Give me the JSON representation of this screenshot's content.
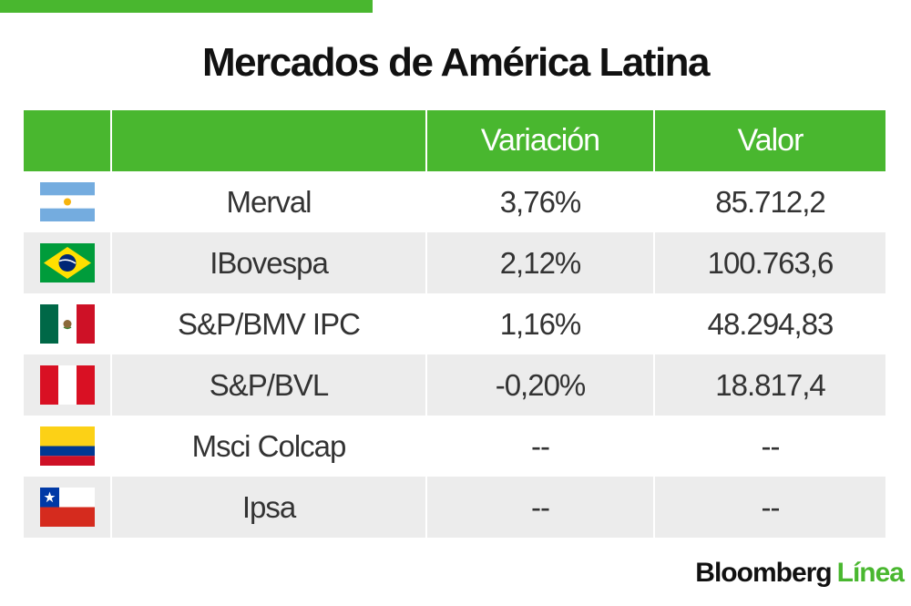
{
  "title": "Mercados de América Latina",
  "accent_color": "#49b72f",
  "table": {
    "headers": [
      "",
      "",
      "Variación",
      "Valor"
    ],
    "rows": [
      {
        "flag": "argentina-flag-icon",
        "name": "Merval",
        "variation": "3,76%",
        "value": "85.712,2"
      },
      {
        "flag": "brazil-flag-icon",
        "name": "IBovespa",
        "variation": "2,12%",
        "value": "100.763,6"
      },
      {
        "flag": "mexico-flag-icon",
        "name": "S&P/BMV IPC",
        "variation": "1,16%",
        "value": "48.294,83"
      },
      {
        "flag": "peru-flag-icon",
        "name": "S&P/BVL",
        "variation": "-0,20%",
        "value": "18.817,4"
      },
      {
        "flag": "colombia-flag-icon",
        "name": "Msci Colcap",
        "variation": "--",
        "value": "--"
      },
      {
        "flag": "chile-flag-icon",
        "name": "Ipsa",
        "variation": "--",
        "value": "--"
      }
    ]
  },
  "footer": {
    "brand": "Bloomberg",
    "brand_accent": "Línea"
  }
}
